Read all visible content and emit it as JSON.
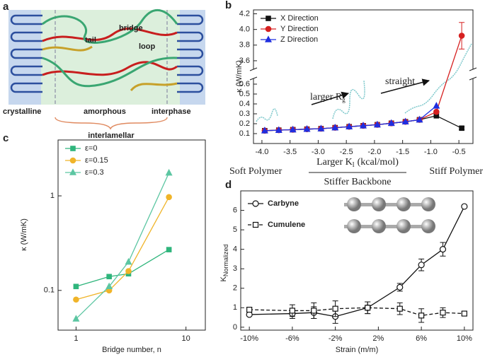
{
  "diagram": {
    "panel": "a",
    "labels": {
      "bridge": "bridge",
      "tail": "tail",
      "loop": "loop",
      "crystalline": "crystalline",
      "amorphous": "amorphous",
      "interphase": "interphase"
    },
    "caption": "interlamellar"
  },
  "chart_data": [
    {
      "type": "line",
      "panel": "b",
      "ylabel": {
        "text": "κ (W/mK)"
      },
      "x": [
        -3.95,
        -3.7,
        -3.45,
        -3.2,
        -2.95,
        -2.7,
        -2.45,
        -2.2,
        -1.95,
        -1.7,
        -1.45,
        -1.2,
        -0.9,
        -0.45
      ],
      "series": [
        {
          "name": "X Direction",
          "color": "#111111",
          "marker": "square",
          "values": [
            0.13,
            0.135,
            0.14,
            0.145,
            0.15,
            0.16,
            0.17,
            0.18,
            0.19,
            0.205,
            0.22,
            0.24,
            0.28,
            0.155
          ],
          "errors": [
            null,
            null,
            null,
            null,
            null,
            null,
            null,
            null,
            null,
            null,
            null,
            null,
            null,
            0.015
          ]
        },
        {
          "name": "Y Direction",
          "color": "#d62020",
          "marker": "circle",
          "values": [
            0.13,
            0.135,
            0.14,
            0.145,
            0.15,
            0.16,
            0.17,
            0.18,
            0.19,
            0.205,
            0.22,
            0.24,
            0.32,
            3.92
          ],
          "errors": [
            null,
            null,
            null,
            null,
            null,
            null,
            null,
            null,
            null,
            null,
            null,
            null,
            null,
            0.17
          ]
        },
        {
          "name": "Z Direction",
          "color": "#1f2ee0",
          "marker": "triangle",
          "values": [
            0.13,
            0.135,
            0.14,
            0.145,
            0.15,
            0.16,
            0.17,
            0.18,
            0.19,
            0.205,
            0.22,
            0.24,
            0.38,
            null
          ]
        }
      ],
      "xlim": [
        -4.15,
        -0.25
      ],
      "xticks": [
        {
          "value": -4,
          "label": "-4.0"
        },
        -3.5,
        {
          "value": -3,
          "label": "-3.0"
        },
        -2.5,
        {
          "value": -2,
          "label": "-2.0"
        },
        -1.5,
        {
          "value": -1,
          "label": "-1.0"
        },
        -0.5
      ],
      "ylim_segments": [
        [
          0,
          0.65
        ],
        [
          3.5,
          4.25
        ]
      ],
      "yticks": [
        0.1,
        0.2,
        0.3,
        0.4,
        0.5,
        0.6,
        3.6,
        3.8,
        {
          "value": 4,
          "label": "4.0"
        },
        4.2
      ],
      "legend": "upper left",
      "annotations": [
        {
          "text": "larger R",
          "sub": "g"
        },
        {
          "text": "straight"
        }
      ],
      "below": {
        "left": "Soft Polymer",
        "center": {
          "text": "Larger K",
          "sub": "l",
          "tail": "(kcal/mol)"
        },
        "center2": "Stiffer Backbone",
        "right": "Stiff Polymer"
      }
    },
    {
      "type": "line",
      "panel": "c",
      "ylabel": {
        "text": "κ (W/mK)"
      },
      "xlabel": {
        "text": "Bridge number, n"
      },
      "x": [
        1,
        2,
        3,
        7
      ],
      "xlog": true,
      "ylog": true,
      "series": [
        {
          "name": "ε=0",
          "color": "#2fb57c",
          "marker": "square",
          "values": [
            0.11,
            0.14,
            0.15,
            0.27
          ]
        },
        {
          "name": "ε=0.15",
          "color": "#f0b429",
          "marker": "circle",
          "values": [
            0.08,
            0.1,
            0.16,
            0.97
          ]
        },
        {
          "name": "ε=0.3",
          "color": "#5cc6a2",
          "marker": "triangle",
          "values": [
            0.05,
            0.11,
            0.2,
            1.75
          ]
        }
      ],
      "xlim": [
        0.686,
        15
      ],
      "xticks": [
        1,
        10
      ],
      "ylim": [
        0.038,
        3.9
      ],
      "yticks": [
        0.1,
        1
      ],
      "legend": "upper left"
    },
    {
      "type": "line",
      "panel": "d",
      "ylabel": {
        "text": "K",
        "sub": "Normalized"
      },
      "xlabel": {
        "text": "Strain (m/m)"
      },
      "x": [
        -10,
        -6,
        -4,
        -2,
        1,
        4,
        6,
        8,
        10
      ],
      "marker_open": true,
      "series": [
        {
          "name": "Carbyne",
          "color": "#111111",
          "marker": "circle",
          "linestyle": "solid",
          "values": [
            0.65,
            0.7,
            0.75,
            0.55,
            1.0,
            2.05,
            3.2,
            4.0,
            6.2
          ],
          "errors": [
            0.05,
            0.25,
            0.3,
            0.35,
            0.3,
            0.2,
            0.3,
            0.35,
            0.05
          ]
        },
        {
          "name": "Cumulene",
          "color": "#111111",
          "marker": "square",
          "linestyle": "dashed",
          "values": [
            0.9,
            0.85,
            0.85,
            0.95,
            1.0,
            0.95,
            0.6,
            0.75,
            0.7
          ],
          "errors": [
            0.1,
            0.3,
            0.4,
            0.4,
            0.3,
            0.3,
            0.35,
            0.25,
            0.1
          ]
        }
      ],
      "xlim": [
        -10.8,
        10.8
      ],
      "xticks": [
        {
          "value": -10,
          "label": "-10%"
        },
        {
          "value": -6,
          "label": "-6%"
        },
        {
          "value": -2,
          "label": "-2%"
        },
        {
          "value": 2,
          "label": "2%"
        },
        {
          "value": 6,
          "label": "6%"
        },
        {
          "value": 10,
          "label": "10%"
        }
      ],
      "ylim": [
        -0.15,
        7
      ],
      "yticks": [
        0,
        1,
        2,
        3,
        4,
        5,
        6
      ],
      "legend": "upper left"
    }
  ]
}
